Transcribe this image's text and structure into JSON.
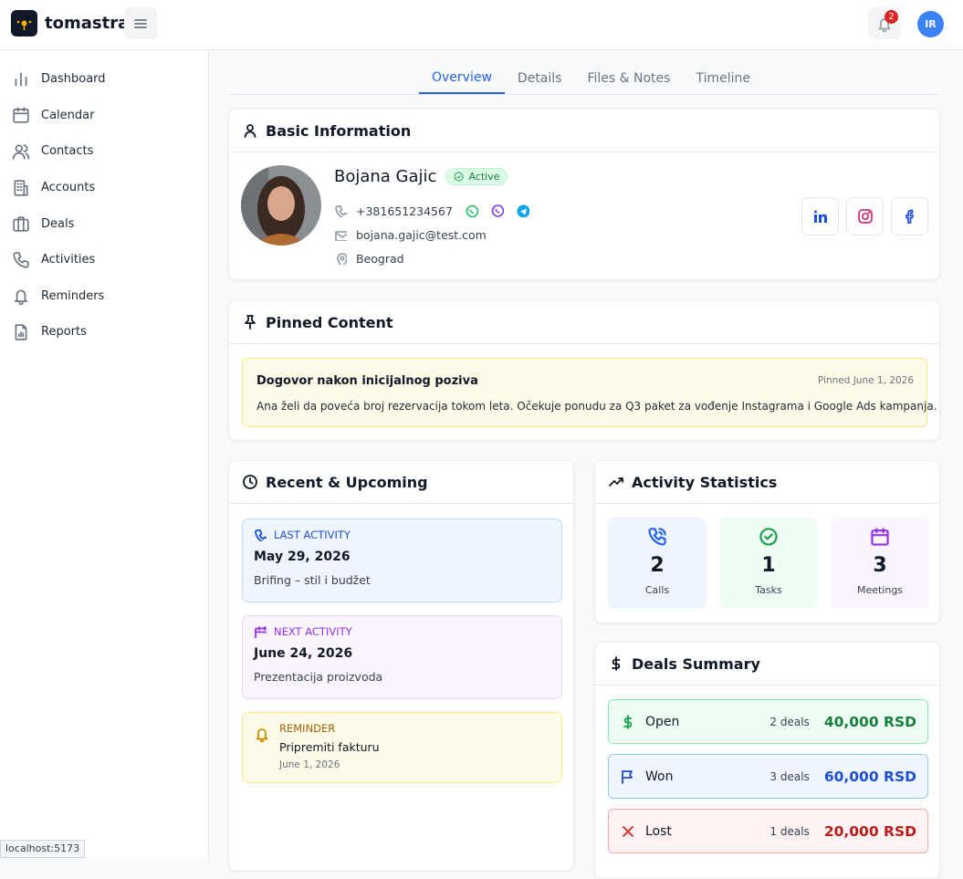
{
  "header": {
    "brand": "tomastra.",
    "notifications": "2",
    "avatar": "IR"
  },
  "sidebar": {
    "items": [
      "Dashboard",
      "Calendar",
      "Contacts",
      "Accounts",
      "Deals",
      "Activities",
      "Reminders",
      "Reports"
    ]
  },
  "tabs": [
    "Overview",
    "Details",
    "Files & Notes",
    "Timeline"
  ],
  "basic_info": {
    "title": "Basic Information",
    "name": "Bojana Gajic",
    "status": "Active",
    "phone": "+381651234567",
    "email": "bojana.gajic@test.com",
    "location": "Beograd"
  },
  "pinned": {
    "title": "Pinned Content",
    "note": {
      "title": "Dogovor nakon inicijalnog poziva",
      "date": "Pinned June 1, 2026",
      "text": "Ana želi da poveća broj rezervacija tokom leta. Očekuje ponudu za Q3 paket za vođenje Instagrama i Google Ads kampanja."
    }
  },
  "recent": {
    "title": "Recent & Upcoming",
    "last": {
      "label": "LAST ACTIVITY",
      "date": "May 29, 2026",
      "text": "Brifing – stil i budžet"
    },
    "next": {
      "label": "NEXT ACTIVITY",
      "date": "June 24, 2026",
      "text": "Prezentacija proizvoda"
    },
    "reminder": {
      "label": "REMINDER",
      "text": "Pripremiti fakturu",
      "date": "June 1, 2026"
    }
  },
  "stats": {
    "title": "Activity Statistics",
    "items": [
      {
        "value": 2,
        "label": "Calls"
      },
      {
        "value": 1,
        "label": "Tasks"
      },
      {
        "value": 3,
        "label": "Meetings"
      }
    ]
  },
  "deals": {
    "title": "Deals Summary",
    "items": [
      {
        "name": "Open",
        "count": "2 deals",
        "amount": "40,000 RSD"
      },
      {
        "name": "Won",
        "count": "3 deals",
        "amount": "60,000 RSD"
      },
      {
        "name": "Lost",
        "count": "1 deals",
        "amount": "20,000 RSD"
      }
    ]
  },
  "status_bar": "localhost:5173"
}
